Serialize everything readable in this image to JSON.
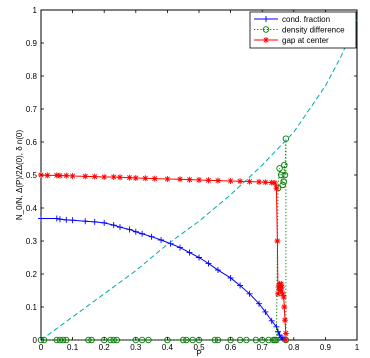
{
  "chart_data": {
    "type": "line",
    "xlabel": "P",
    "ylabel": "N_0/N, Δ(P)/2Δ(0), δ n(0)",
    "xlim": [
      0,
      1
    ],
    "ylim": [
      0,
      1
    ],
    "xticks": [
      "0",
      "0.1",
      "0.2",
      "0.3",
      "0.4",
      "0.5",
      "0.6",
      "0.7",
      "0.8",
      "0.9",
      "1"
    ],
    "yticks": [
      "0",
      "0.1",
      "0.2",
      "0.3",
      "0.4",
      "0.5",
      "0.6",
      "0.7",
      "0.8",
      "0.9",
      "1"
    ],
    "grid": false,
    "legend_position": "top-right",
    "series": [
      {
        "name": "cond. fraction",
        "color": "#0000ff",
        "style": "solid",
        "marker": "plus",
        "x": [
          0.0,
          0.05,
          0.06,
          0.08,
          0.1,
          0.14,
          0.17,
          0.2,
          0.23,
          0.25,
          0.28,
          0.3,
          0.32,
          0.35,
          0.38,
          0.41,
          0.44,
          0.47,
          0.5,
          0.53,
          0.56,
          0.6,
          0.63,
          0.66,
          0.69,
          0.71,
          0.73,
          0.745,
          0.75,
          0.755,
          0.76,
          0.765,
          0.77,
          0.775
        ],
        "y": [
          0.368,
          0.368,
          0.366,
          0.364,
          0.363,
          0.36,
          0.358,
          0.355,
          0.348,
          0.342,
          0.335,
          0.328,
          0.322,
          0.313,
          0.303,
          0.292,
          0.28,
          0.265,
          0.25,
          0.232,
          0.212,
          0.188,
          0.165,
          0.14,
          0.11,
          0.085,
          0.058,
          0.04,
          0.025,
          0.015,
          0.008,
          0.004,
          0.002,
          0.0
        ]
      },
      {
        "name": "density difference",
        "color": "#008000",
        "style": "dotted",
        "marker": "circle",
        "x": [
          0.0,
          0.01,
          0.05,
          0.06,
          0.07,
          0.08,
          0.15,
          0.16,
          0.2,
          0.22,
          0.23,
          0.24,
          0.3,
          0.32,
          0.34,
          0.4,
          0.45,
          0.46,
          0.48,
          0.5,
          0.55,
          0.56,
          0.6,
          0.63,
          0.65,
          0.68,
          0.7,
          0.72,
          0.735,
          0.74,
          0.745,
          0.75,
          0.755,
          0.76,
          0.765,
          0.768,
          0.77,
          0.772,
          0.775,
          0.775
        ],
        "y": [
          0.0,
          0.0,
          0.0,
          0.0,
          0.0,
          0.0,
          0.0,
          0.0,
          0.0,
          0.0,
          0.0,
          0.0,
          0.0,
          0.0,
          0.0,
          0.0,
          0.0,
          0.0,
          0.0,
          0.0,
          0.0,
          0.0,
          0.0,
          0.0,
          0.0,
          0.0,
          0.0,
          0.0,
          0.0,
          0.0,
          0.0,
          0.46,
          0.52,
          0.5,
          0.47,
          0.48,
          0.53,
          0.5,
          0.61,
          0.0
        ]
      },
      {
        "name": "gap at center",
        "color": "#ff0000",
        "style": "solid",
        "marker": "star",
        "x": [
          0.0,
          0.02,
          0.05,
          0.06,
          0.08,
          0.1,
          0.14,
          0.17,
          0.2,
          0.23,
          0.25,
          0.28,
          0.3,
          0.33,
          0.36,
          0.4,
          0.44,
          0.47,
          0.5,
          0.53,
          0.56,
          0.6,
          0.63,
          0.66,
          0.69,
          0.71,
          0.73,
          0.74,
          0.745,
          0.748,
          0.75,
          0.752,
          0.755,
          0.758,
          0.76,
          0.762,
          0.765,
          0.768,
          0.77,
          0.772,
          0.775,
          0.775
        ],
        "y": [
          0.5,
          0.499,
          0.499,
          0.498,
          0.498,
          0.497,
          0.496,
          0.495,
          0.494,
          0.494,
          0.493,
          0.492,
          0.491,
          0.49,
          0.489,
          0.488,
          0.487,
          0.486,
          0.485,
          0.484,
          0.483,
          0.482,
          0.481,
          0.48,
          0.479,
          0.478,
          0.477,
          0.476,
          0.46,
          0.3,
          0.14,
          0.16,
          0.17,
          0.15,
          0.17,
          0.16,
          0.14,
          0.13,
          0.1,
          0.06,
          0.02,
          0.0
        ]
      },
      {
        "name": "",
        "color": "#00aaaa",
        "style": "dashed",
        "marker": "none",
        "x": [
          0.0,
          0.1,
          0.2,
          0.3,
          0.4,
          0.5,
          0.6,
          0.7,
          0.75,
          0.8,
          0.85,
          0.9,
          0.95,
          1.0
        ],
        "y": [
          0.0,
          0.07,
          0.14,
          0.21,
          0.29,
          0.36,
          0.44,
          0.53,
          0.58,
          0.63,
          0.7,
          0.77,
          0.86,
          0.97
        ]
      }
    ]
  }
}
